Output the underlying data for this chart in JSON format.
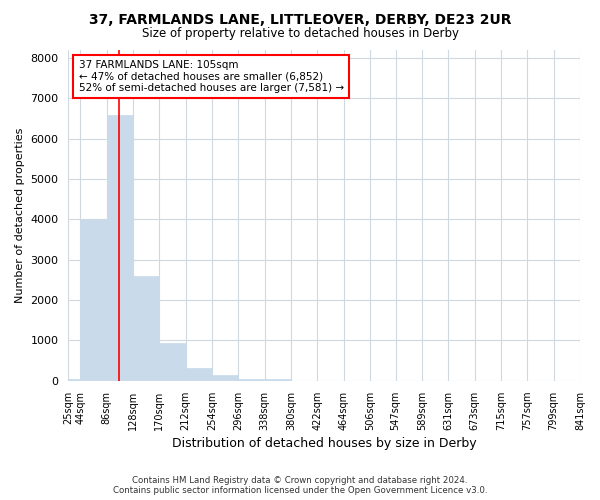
{
  "title1": "37, FARMLANDS LANE, LITTLEOVER, DERBY, DE23 2UR",
  "title2": "Size of property relative to detached houses in Derby",
  "xlabel": "Distribution of detached houses by size in Derby",
  "ylabel": "Number of detached properties",
  "bin_edges": [
    25,
    44,
    86,
    128,
    170,
    212,
    254,
    296,
    338,
    380,
    422,
    464,
    506,
    547,
    589,
    631,
    673,
    715,
    757,
    799,
    841
  ],
  "bar_heights": [
    50,
    4000,
    6600,
    2600,
    950,
    330,
    150,
    50,
    50,
    0,
    0,
    0,
    0,
    0,
    0,
    0,
    0,
    0,
    0,
    0
  ],
  "bar_color": "#c9daea",
  "bar_edge_color": "#c9daea",
  "red_line_x": 105,
  "annotation_line1": "37 FARMLANDS LANE: 105sqm",
  "annotation_line2": "← 47% of detached houses are smaller (6,852)",
  "annotation_line3": "52% of semi-detached houses are larger (7,581) →",
  "annotation_box_color": "white",
  "annotation_box_edge_color": "red",
  "ylim": [
    0,
    8200
  ],
  "yticks": [
    0,
    1000,
    2000,
    3000,
    4000,
    5000,
    6000,
    7000,
    8000
  ],
  "footer1": "Contains HM Land Registry data © Crown copyright and database right 2024.",
  "footer2": "Contains public sector information licensed under the Open Government Licence v3.0.",
  "background_color": "#ffffff",
  "grid_color": "#d0d8e0",
  "tick_label_fontsize": 7,
  "ylabel_fontsize": 8,
  "xlabel_fontsize": 9
}
